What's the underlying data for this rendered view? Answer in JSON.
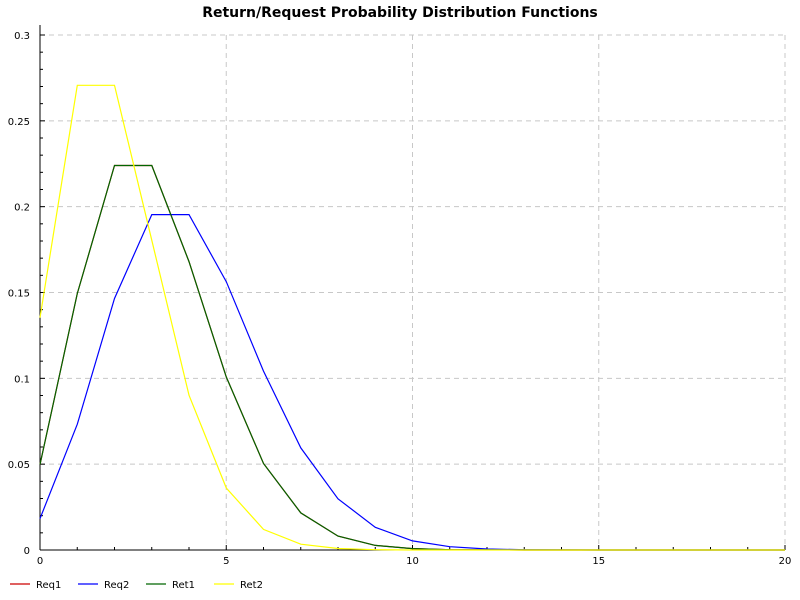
{
  "chart_data": {
    "type": "line",
    "title": "Return/Request Probability Distribution Functions",
    "xlabel": "",
    "ylabel": "",
    "xlim": [
      0,
      20
    ],
    "ylim": [
      0,
      0.3
    ],
    "x_ticks": [
      0,
      5,
      10,
      15,
      20
    ],
    "y_ticks": [
      0,
      0.05,
      0.1,
      0.15,
      0.2,
      0.25,
      0.3
    ],
    "x_tick_labels": [
      "0",
      "5",
      "10",
      "15",
      "20"
    ],
    "y_tick_labels": [
      "0",
      "0.05",
      "0.1",
      "0.15",
      "0.2",
      "0.25",
      "0.3"
    ],
    "grid": true,
    "legend_position": "bottom-left",
    "series": [
      {
        "name": "Req1",
        "color": "#cc0000",
        "x": [
          0,
          1,
          2,
          3,
          4,
          5,
          6,
          7,
          8,
          9,
          10,
          11,
          12,
          13,
          14,
          15,
          16,
          17,
          18,
          19,
          20
        ],
        "values": [
          0.0498,
          0.1494,
          0.224,
          0.224,
          0.168,
          0.1008,
          0.0504,
          0.0216,
          0.0081,
          0.0027,
          0.0008,
          0.0002,
          0.0001,
          0,
          0,
          0,
          0,
          0,
          0,
          0,
          0
        ]
      },
      {
        "name": "Req2",
        "color": "#0000ff",
        "x": [
          0,
          1,
          2,
          3,
          4,
          5,
          6,
          7,
          8,
          9,
          10,
          11,
          12,
          13,
          14,
          15,
          16,
          17,
          18,
          19,
          20
        ],
        "values": [
          0.0183,
          0.0733,
          0.1465,
          0.1954,
          0.1954,
          0.1563,
          0.1042,
          0.0595,
          0.0298,
          0.0132,
          0.0053,
          0.0019,
          0.0006,
          0.0002,
          0.0001,
          0,
          0,
          0,
          0,
          0,
          0
        ]
      },
      {
        "name": "Ret1",
        "color": "#006600",
        "x": [
          0,
          1,
          2,
          3,
          4,
          5,
          6,
          7,
          8,
          9,
          10,
          11,
          12,
          13,
          14,
          15,
          16,
          17,
          18,
          19,
          20
        ],
        "values": [
          0.0498,
          0.1494,
          0.224,
          0.224,
          0.168,
          0.1008,
          0.0504,
          0.0216,
          0.0081,
          0.0027,
          0.0008,
          0.0002,
          0.0001,
          0,
          0,
          0,
          0,
          0,
          0,
          0,
          0
        ]
      },
      {
        "name": "Ret2",
        "color": "#ffff00",
        "x": [
          0,
          1,
          2,
          3,
          4,
          5,
          6,
          7,
          8,
          9,
          10,
          11,
          12,
          13,
          14,
          15,
          16,
          17,
          18,
          19,
          20
        ],
        "values": [
          0.1353,
          0.2707,
          0.2707,
          0.1804,
          0.0902,
          0.0361,
          0.012,
          0.0034,
          0.0009,
          0.0002,
          0,
          0,
          0,
          0,
          0,
          0,
          0,
          0,
          0,
          0,
          0
        ]
      }
    ]
  }
}
